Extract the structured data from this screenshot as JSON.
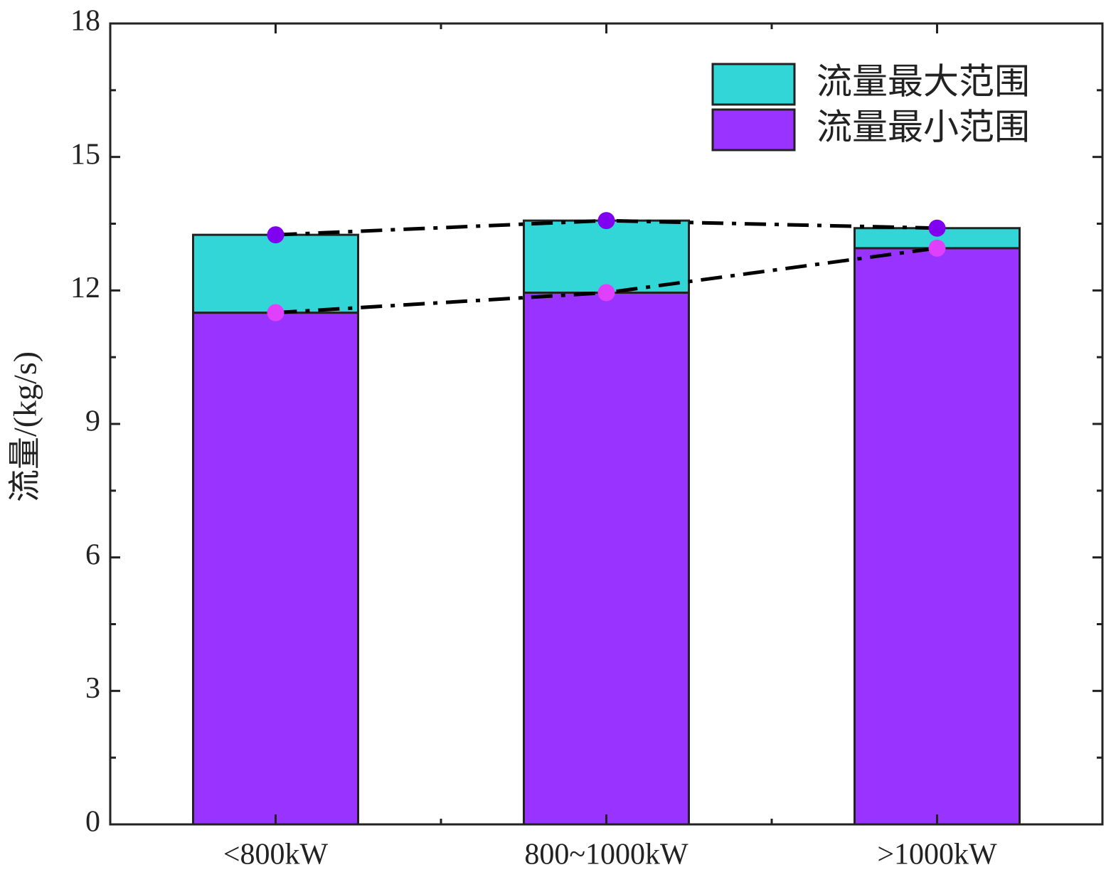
{
  "chart_data": {
    "type": "stacked_bar",
    "ylabel": "流量/(kg/s)",
    "categories": [
      "<800kW",
      "800~1000kW",
      ">1000kW"
    ],
    "series": [
      {
        "name": "流量最小范围",
        "color": "#9933ff",
        "marker_color": "#e040fb",
        "values": [
          11.5,
          11.95,
          12.95
        ]
      },
      {
        "name": "流量最大范围",
        "color": "#33d6d6",
        "marker_color": "#8000f0",
        "values": [
          1.75,
          1.62,
          0.45
        ]
      }
    ],
    "ylim": [
      0,
      18
    ],
    "yticks": [
      0,
      3,
      6,
      9,
      12,
      15,
      18
    ],
    "legend": "upper right"
  }
}
